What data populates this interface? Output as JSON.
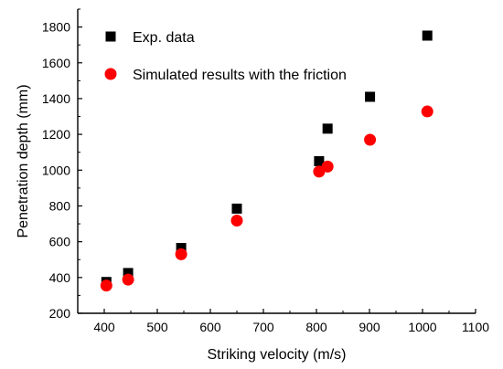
{
  "chart_data": {
    "type": "scatter",
    "title": "",
    "xlabel": "Striking velocity (m/s)",
    "ylabel": "Penetration depth (mm)",
    "xlim": [
      350,
      1100
    ],
    "ylim": [
      200,
      1900
    ],
    "xticks": [
      400,
      500,
      600,
      700,
      800,
      900,
      1000,
      1100
    ],
    "yticks": [
      200,
      400,
      600,
      800,
      1000,
      1200,
      1400,
      1600,
      1800
    ],
    "grid": false,
    "legend_position": "top-left",
    "series": [
      {
        "name": "Exp. data",
        "marker": "square",
        "color": "#000000",
        "x": [
          404,
          445,
          545,
          650,
          805,
          821,
          901,
          1009
        ],
        "y": [
          375,
          425,
          565,
          785,
          1050,
          1232,
          1410,
          1752
        ]
      },
      {
        "name": "Simulated results with the friction",
        "marker": "circle",
        "color": "#ff0000",
        "x": [
          404,
          445,
          545,
          650,
          805,
          821,
          901,
          1009
        ],
        "y": [
          355,
          388,
          530,
          718,
          992,
          1020,
          1170,
          1328
        ]
      }
    ]
  }
}
